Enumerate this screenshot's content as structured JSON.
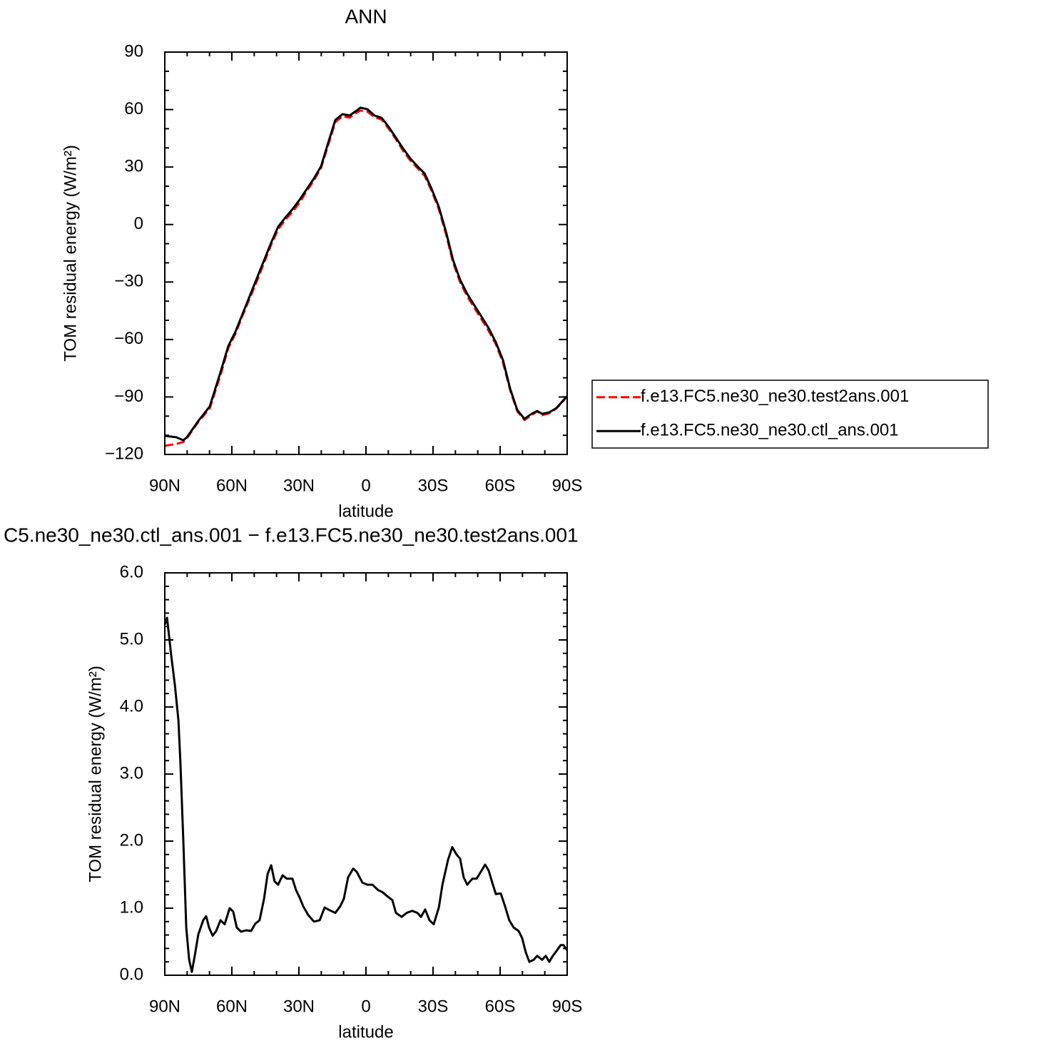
{
  "chart_data": [
    {
      "type": "line",
      "title": "ANN",
      "ylabel": "TOM residual energy (W/m²)",
      "xlabel": "latitude",
      "x": [
        90,
        84.9,
        81.7,
        80.1,
        75.0,
        69.9,
        64.8,
        61.6,
        58.4,
        55.2,
        52.0,
        48.8,
        45.6,
        42.4,
        39.3,
        36.1,
        32.9,
        29.7,
        26.5,
        23.3,
        20.1,
        16.9,
        13.7,
        10.5,
        7.3,
        4.1,
        2.5,
        -0.6,
        -3.8,
        -7.0,
        -10.2,
        -13.4,
        -16.6,
        -19.8,
        -23.0,
        -26.2,
        -29.4,
        -32.6,
        -35.8,
        -39.0,
        -42.1,
        -45.3,
        -48.5,
        -51.7,
        -54.9,
        -58.1,
        -61.3,
        -64.5,
        -67.7,
        -70.9,
        -74.1,
        -76.6,
        -78.8,
        -82.0,
        -85.2,
        -90
      ],
      "series": [
        {
          "name": "f.e13.FC5.ne30_ne30.test2ans.001",
          "color": "#ff0000",
          "style": "dashed",
          "values": [
            -115.5,
            -114.5,
            -113.5,
            -111.5,
            -103,
            -96,
            -77.5,
            -64.5,
            -57,
            -47.5,
            -38.5,
            -29.5,
            -20,
            -10.5,
            -2.5,
            2.5,
            6.5,
            11.5,
            17.5,
            23,
            29.5,
            41.5,
            53.5,
            56.5,
            55.8,
            58.5,
            59.5,
            59,
            56,
            54.8,
            50,
            44.5,
            38.5,
            33.5,
            29.5,
            25.5,
            17.5,
            8,
            -5,
            -20,
            -30,
            -37.5,
            -43.5,
            -49.5,
            -55.5,
            -62.5,
            -72,
            -86.5,
            -97.5,
            -102,
            -99.5,
            -97.5,
            -99.5,
            -98.5,
            -96,
            -89.8
          ]
        },
        {
          "name": "f.e13.FC5.ne30_ne30.ctl_ans.001",
          "color": "#000000",
          "style": "solid",
          "values": [
            -110.3,
            -111,
            -112.6,
            -111,
            -102.5,
            -95,
            -76,
            -63.4,
            -56,
            -46.6,
            -37.3,
            -28,
            -18.7,
            -9.4,
            -1.2,
            3.6,
            8,
            12.9,
            18.5,
            24,
            30.4,
            42.7,
            54.6,
            57.6,
            56.9,
            59.5,
            61,
            60.2,
            56.9,
            55.7,
            50.9,
            45.3,
            39.7,
            34.5,
            30.4,
            26.7,
            18.5,
            9.2,
            -3.8,
            -18.7,
            -28.8,
            -36.2,
            -42.2,
            -48.1,
            -54.1,
            -61.5,
            -70.8,
            -85.7,
            -96.9,
            -101.4,
            -98.8,
            -97.3,
            -98.8,
            -98,
            -95.8,
            -89.5
          ]
        }
      ],
      "xlim": [
        90,
        -90
      ],
      "xticks": [
        {
          "value": 90,
          "label": "90N"
        },
        {
          "value": 60,
          "label": "60N"
        },
        {
          "value": 30,
          "label": "30N"
        },
        0,
        {
          "value": -30,
          "label": "30S"
        },
        {
          "value": -60,
          "label": "60S"
        },
        {
          "value": -90,
          "label": "90S"
        }
      ],
      "ylim": [
        -120,
        90
      ],
      "yticks": [
        90,
        60,
        30,
        0,
        {
          "value": -30,
          "label": "−30"
        },
        {
          "value": -60,
          "label": "−60"
        },
        {
          "value": -90,
          "label": "−90"
        },
        {
          "value": -120,
          "label": "−120"
        }
      ],
      "legend": "outside-right"
    },
    {
      "type": "line",
      "title": "C5.ne30_ne30.ctl_ans.001 − f.e13.FC5.ne30_ne30.test2ans.001",
      "ylabel": "TOM residual energy (W/m²)",
      "xlabel": "latitude",
      "x": [
        90,
        89.0,
        87.1,
        85.5,
        83.9,
        83.0,
        81.7,
        80.4,
        79.1,
        77.9,
        76.6,
        75.0,
        72.8,
        71.5,
        70.2,
        68.6,
        67.0,
        65.1,
        63.2,
        61.0,
        59.4,
        57.8,
        55.9,
        53.6,
        51.4,
        49.5,
        47.6,
        45.6,
        44.0,
        42.4,
        40.9,
        39.3,
        37.3,
        35.4,
        32.9,
        31.3,
        29.7,
        28.1,
        25.9,
        23.3,
        20.7,
        18.5,
        16.3,
        13.7,
        11.5,
        9.9,
        8.0,
        5.7,
        4.1,
        1.6,
        -0.6,
        -2.9,
        -5.4,
        -7.3,
        -10.2,
        -11.8,
        -13.4,
        -16.0,
        -18.2,
        -20.7,
        -23.0,
        -24.6,
        -26.5,
        -28.4,
        -30.3,
        -32.6,
        -34.2,
        -36.7,
        -38.6,
        -40.5,
        -42.1,
        -43.7,
        -45.3,
        -47.6,
        -49.5,
        -51.7,
        -53.3,
        -54.9,
        -56.5,
        -58.1,
        -60.3,
        -62.2,
        -64.1,
        -66.1,
        -68.3,
        -69.9,
        -71.5,
        -73.1,
        -75.0,
        -76.6,
        -78.8,
        -80.4,
        -82.0,
        -83.6,
        -85.2,
        -87.1,
        -88.4,
        -90
      ],
      "series": [
        {
          "color": "#000000",
          "style": "solid",
          "values": [
            5.23,
            5.33,
            4.76,
            4.33,
            3.8,
            3.16,
            1.99,
            0.71,
            0.23,
            0.05,
            0.29,
            0.61,
            0.82,
            0.88,
            0.71,
            0.59,
            0.66,
            0.82,
            0.76,
            1.0,
            0.95,
            0.71,
            0.65,
            0.67,
            0.66,
            0.77,
            0.82,
            1.14,
            1.51,
            1.64,
            1.4,
            1.35,
            1.49,
            1.44,
            1.44,
            1.27,
            1.16,
            1.03,
            0.9,
            0.8,
            0.82,
            1.01,
            0.97,
            0.93,
            1.03,
            1.14,
            1.46,
            1.59,
            1.54,
            1.38,
            1.35,
            1.35,
            1.27,
            1.24,
            1.16,
            1.12,
            0.93,
            0.87,
            0.93,
            0.96,
            0.93,
            0.87,
            0.98,
            0.82,
            0.76,
            1.01,
            1.35,
            1.72,
            1.91,
            1.8,
            1.74,
            1.46,
            1.35,
            1.44,
            1.44,
            1.56,
            1.65,
            1.56,
            1.38,
            1.21,
            1.22,
            1.03,
            0.82,
            0.71,
            0.66,
            0.55,
            0.34,
            0.2,
            0.23,
            0.29,
            0.23,
            0.29,
            0.2,
            0.29,
            0.36,
            0.45,
            0.45,
            0.37
          ]
        }
      ],
      "xlim": [
        90,
        -90
      ],
      "xticks": [
        {
          "value": 90,
          "label": "90N"
        },
        {
          "value": 60,
          "label": "60N"
        },
        {
          "value": 30,
          "label": "30N"
        },
        0,
        {
          "value": -30,
          "label": "30S"
        },
        {
          "value": -60,
          "label": "60S"
        },
        {
          "value": -90,
          "label": "90S"
        }
      ],
      "ylim": [
        0,
        6
      ],
      "yticks": [
        {
          "value": 6,
          "label": "6.0"
        },
        {
          "value": 5,
          "label": "5.0"
        },
        {
          "value": 4,
          "label": "4.0"
        },
        {
          "value": 3,
          "label": "3.0"
        },
        {
          "value": 2,
          "label": "2.0"
        },
        {
          "value": 1,
          "label": "1.0"
        },
        {
          "value": 0,
          "label": "0.0"
        }
      ]
    }
  ]
}
